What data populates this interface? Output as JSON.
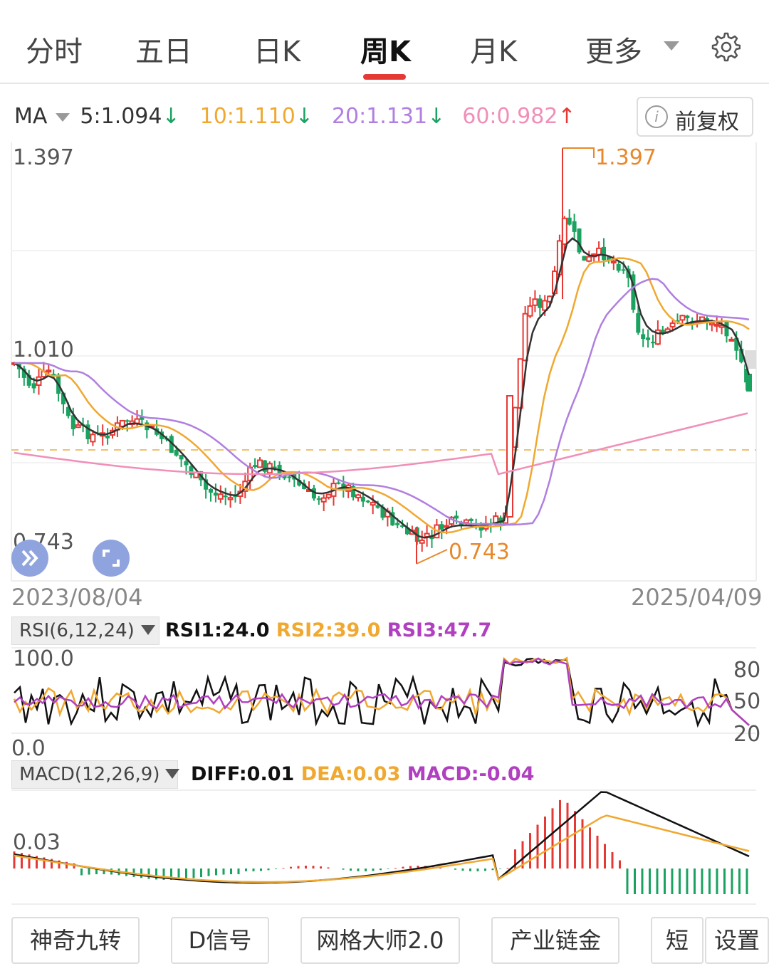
{
  "tabs": [
    {
      "label": "分时"
    },
    {
      "label": "五日"
    },
    {
      "label": "日K"
    },
    {
      "label": "周K"
    },
    {
      "label": "月K"
    },
    {
      "label": "更多"
    }
  ],
  "active_tab": "周K",
  "icons": {
    "settings": "gear-icon",
    "info": "info-icon",
    "expand": "double-chevron-right-icon",
    "fullscreen": "fullscreen-icon"
  },
  "ma": {
    "label": "MA",
    "items": [
      {
        "text": "5:1.094",
        "arrow": "↓",
        "color": "#333333",
        "arrow_color": "#1aa260"
      },
      {
        "text": "10:1.110",
        "arrow": "↓",
        "color": "#f0a830",
        "arrow_color": "#1aa260"
      },
      {
        "text": "20:1.131",
        "arrow": "↓",
        "color": "#b07fe0",
        "arrow_color": "#1aa260"
      },
      {
        "text": "60:0.982",
        "arrow": "↑",
        "color": "#f08fb8",
        "arrow_color": "#e53935"
      }
    ]
  },
  "adjust_button": {
    "label": "前复权"
  },
  "price_axis": {
    "top": "1.397",
    "mid": "1.010",
    "bottom": "0.743"
  },
  "annotations": {
    "high": "1.397",
    "low": "0.743"
  },
  "dates": {
    "start": "2023/08/04",
    "end": "2025/04/09"
  },
  "rsi": {
    "label": "RSI(6,12,24)",
    "rsi1": "RSI1:24.0",
    "rsi2": "RSI2:39.0",
    "rsi3": "RSI3:47.7",
    "axis_top": "100.0",
    "axis_bottom": "0.0",
    "levels": [
      "80",
      "50",
      "20"
    ]
  },
  "macd": {
    "label": "MACD(12,26,9)",
    "diff": "DIFF:0.01",
    "dea": "DEA:0.03",
    "macd": "MACD:-0.04",
    "axis_top": "0.03"
  },
  "bottom_buttons": [
    {
      "label": "神奇九转"
    },
    {
      "label": "D信号"
    },
    {
      "label": "网格大师2.0"
    },
    {
      "label": "产业链金"
    },
    {
      "label": "短"
    },
    {
      "label": "设置"
    }
  ],
  "colors": {
    "up": "#e53935",
    "down": "#1aa260",
    "ma5": "#333333",
    "ma10": "#f0a830",
    "ma20": "#b07fe0",
    "ma60": "#f08fb8",
    "accent": "#e53935"
  }
}
